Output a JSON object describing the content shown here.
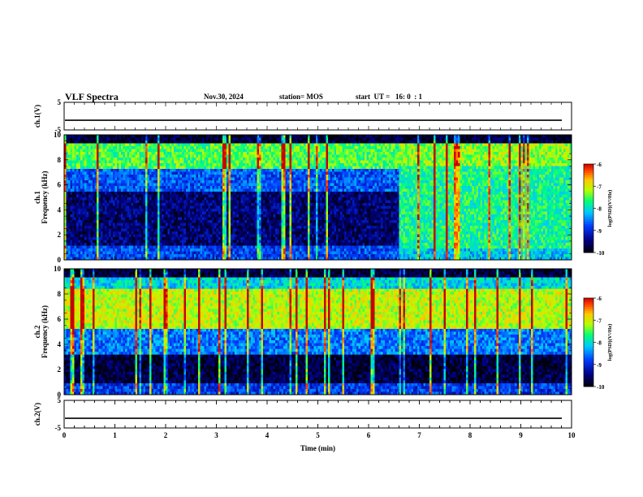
{
  "header": {
    "title": "VLF Spectra",
    "date": "Nov.30, 2024",
    "station": "station= MOS",
    "start": "start  UT =   16: 0  : 1"
  },
  "chart_data": {
    "type": "heatmap",
    "x": {
      "label": "Time  (min)",
      "range": [
        0,
        10
      ],
      "ticks": [
        "0",
        "1",
        "2",
        "3",
        "4",
        "5",
        "6",
        "7",
        "8",
        "9",
        "10"
      ]
    },
    "panels": [
      {
        "id": "ch1-voltage",
        "type": "line",
        "ylabel": "ch.1(V)",
        "ylim": [
          -5,
          5
        ],
        "yticks": [
          "5",
          "-5"
        ],
        "level": -1.5
      },
      {
        "id": "ch1-spectrogram",
        "type": "heatmap",
        "ylabel_top": "ch.1",
        "ylabel": "Frequency  (kHz)",
        "ylim": [
          0,
          10
        ],
        "yticks": [
          "0",
          "2",
          "4",
          "6",
          "8",
          "10"
        ],
        "regime_change_min": 6.6,
        "colorbar": {
          "label": "log(PSD)(V²/Hz)",
          "range": [
            -10,
            -6
          ],
          "ticks": [
            "-6",
            "-7",
            "-8",
            "-9",
            "-10"
          ]
        }
      },
      {
        "id": "ch2-spectrogram",
        "type": "heatmap",
        "ylabel_top": "ch.2",
        "ylabel": "Frequency  (kHz)",
        "ylim": [
          0,
          10
        ],
        "yticks": [
          "0",
          "2",
          "4",
          "6",
          "8",
          "10"
        ],
        "colorbar": {
          "label": "log(PSD)(V²/Hz)",
          "range": [
            -10,
            -6
          ],
          "ticks": [
            "-6",
            "-7",
            "-8",
            "-9",
            "-10"
          ]
        }
      },
      {
        "id": "ch2-voltage",
        "type": "line",
        "ylabel": "ch.2(V)",
        "ylim": [
          -5,
          5
        ],
        "yticks": [
          "5",
          "-5"
        ],
        "level": -1.5
      }
    ]
  }
}
